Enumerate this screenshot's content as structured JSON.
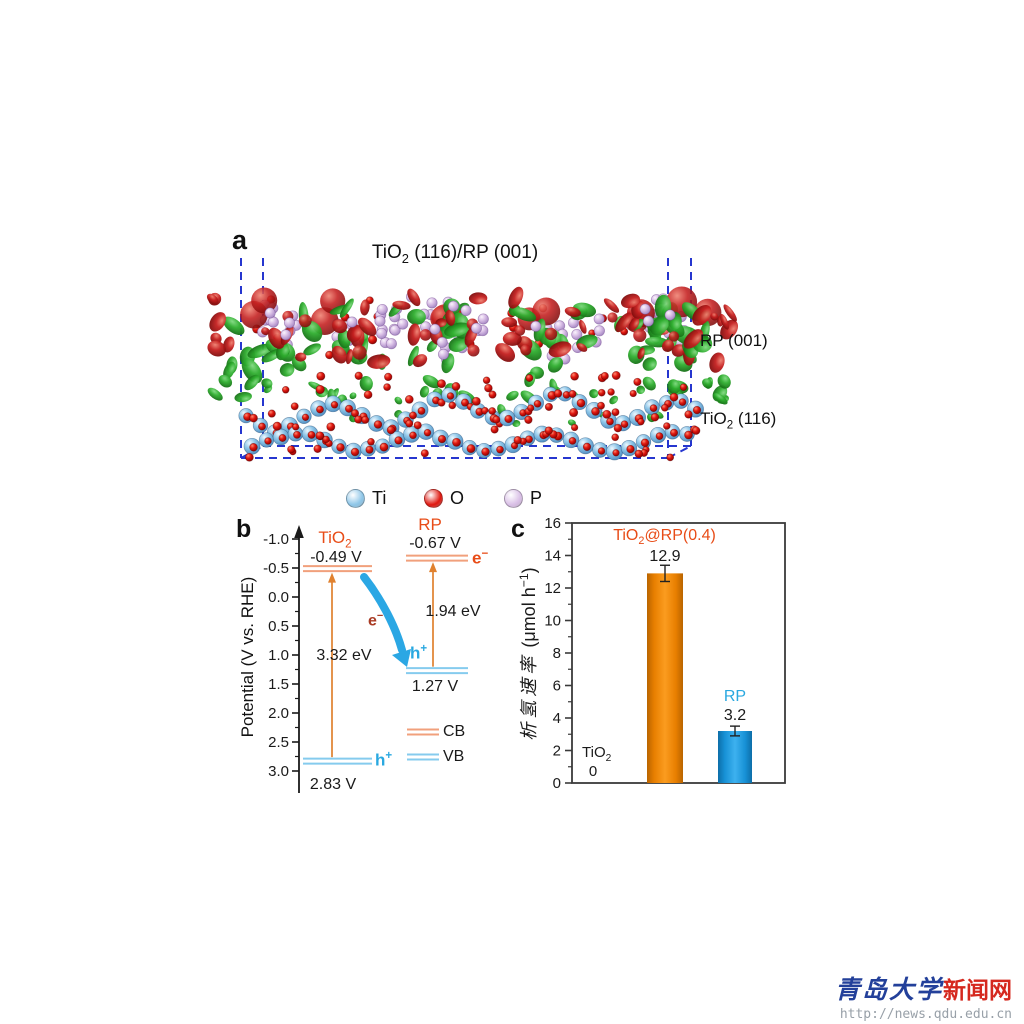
{
  "figure": {
    "panel_a": {
      "label": "a",
      "title": {
        "pre": "TiO",
        "sub": "2",
        "post": " (116)/RP (001)"
      },
      "annotations": {
        "rp_layer": "RP (001)",
        "tio2_layer": {
          "pre": "TiO",
          "sub": "2",
          "post": " (116)"
        }
      },
      "legend": [
        {
          "element": "Ti",
          "color": "#8ec6e8"
        },
        {
          "element": "O",
          "color": "#e01810"
        },
        {
          "element": "P",
          "color": "#d9bfe6"
        }
      ],
      "colors": {
        "box_dashed": "#2636cf",
        "isosurface_green": "#2fae2f",
        "isosurface_red": "#c41f1f"
      }
    },
    "panel_b": {
      "label": "b",
      "axis": {
        "label": "Potential (V vs. RHE)",
        "ticks": [
          "-1.0",
          "-0.5",
          "0.0",
          "0.5",
          "1.0",
          "1.5",
          "2.0",
          "2.5",
          "3.0"
        ]
      },
      "materials": [
        {
          "name": {
            "pre": "TiO",
            "sub": "2"
          },
          "cb_text": "-0.49 V",
          "cb_v": -0.49,
          "vb_text": "2.83 V",
          "vb_v": 2.83,
          "gap": "3.32 eV",
          "vb_carrier": {
            "base": "h",
            "sup": "+"
          }
        },
        {
          "name": {
            "pre": "RP",
            "sub": ""
          },
          "cb_text": "-0.67 V",
          "cb_v": -0.67,
          "vb_text": "1.27 V",
          "vb_v": 1.27,
          "gap": "1.94 eV",
          "cb_carrier": {
            "base": "e",
            "sup": "−"
          },
          "vb_carrier": {
            "base": "h",
            "sup": "+"
          }
        }
      ],
      "transfer_electron": {
        "base": "e",
        "sup": "−"
      },
      "level_legend": [
        {
          "label": "CB",
          "color": "#f1a07c"
        },
        {
          "label": "VB",
          "color": "#85cbee"
        }
      ],
      "colors": {
        "cb_line": "#f1a07c",
        "vb_line": "#85cbee",
        "gap_arrow": "#e0812f",
        "electron_text": "#e84c17",
        "hole_text": "#29a8e0",
        "transfer_arrow": "#2ba7e4",
        "transfer_electron_text": "#a93b24"
      }
    },
    "panel_c": {
      "label": "c",
      "title": {
        "pre": "TiO",
        "sub": "2",
        "post": "@RP(0.4)"
      },
      "categories_display": {
        "tio2": {
          "pre": "TiO",
          "sub": "2"
        },
        "rp": "RP"
      },
      "ylabel_zh": "析氢速率",
      "ylabel_unit_pre": "(μmol h",
      "ylabel_unit_sup": "−1",
      "ylabel_unit_post": ")"
    },
    "watermark": {
      "site_name_zh": "青岛大学",
      "site_suffix_zh": "新闻网",
      "url": "http://news.qdu.edu.cn"
    }
  },
  "chart_data": {
    "type": "bar",
    "title": "",
    "categories": [
      "TiO2",
      "TiO2@RP(0.4)",
      "RP"
    ],
    "values": [
      0,
      12.9,
      3.2
    ],
    "errors": [
      0,
      0.5,
      0.3
    ],
    "value_labels": [
      "0",
      "12.9",
      "3.2"
    ],
    "bar_colors": [
      "none",
      "#ef8a10",
      "#1e9fe0"
    ],
    "ylabel": "析氢速率 (μmol h−1)",
    "xlabel": "",
    "ylim": [
      0,
      16
    ],
    "yticks": [
      "0",
      "2",
      "4",
      "6",
      "8",
      "10",
      "12",
      "14",
      "16"
    ],
    "grid": false,
    "legend_position": "none"
  }
}
